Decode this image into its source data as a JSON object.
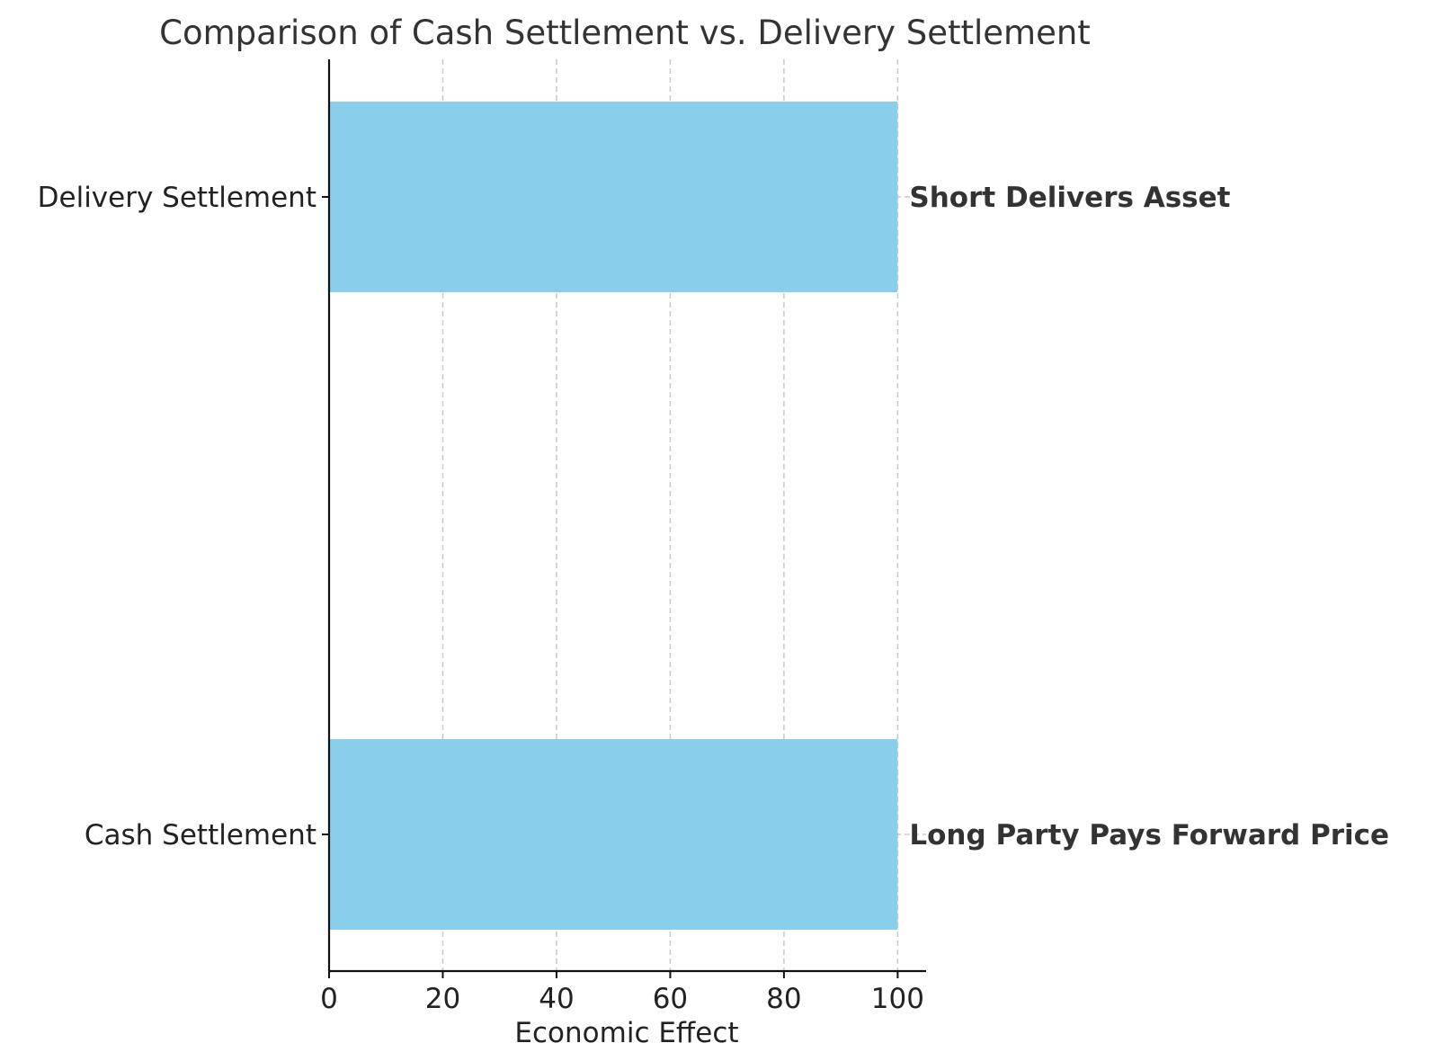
{
  "chart_data": {
    "type": "bar",
    "orientation": "horizontal",
    "title": "Comparison of Cash Settlement vs. Delivery Settlement",
    "xlabel": "Economic Effect",
    "ylabel": "",
    "xlim": [
      0,
      105
    ],
    "xticks": [
      0,
      20,
      40,
      60,
      80,
      100
    ],
    "grid": true,
    "categories": [
      "Cash Settlement",
      "Delivery Settlement"
    ],
    "values": [
      100,
      100
    ],
    "annotations": [
      "Long Party Pays Forward Price",
      "Short Delivers Asset"
    ],
    "bar_color": "#87CEEB"
  }
}
